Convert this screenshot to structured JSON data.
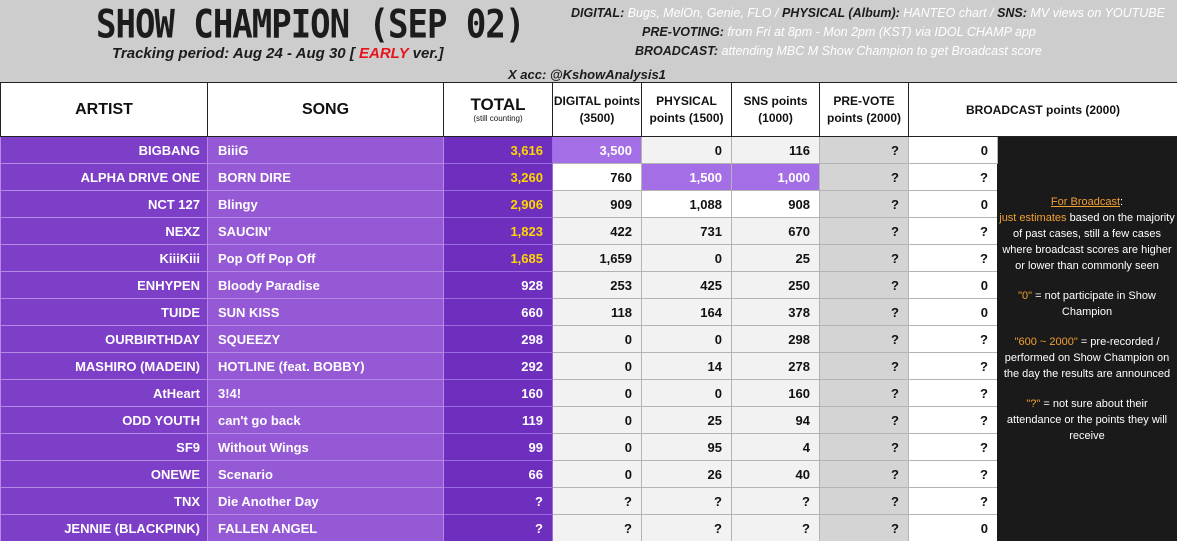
{
  "header": {
    "title": "SHOW CHAMPION (SEP 02)",
    "tracking_prefix": "Tracking period: Aug 24 - Aug 30 [",
    "tracking_early": "EARLY",
    "tracking_suffix": "ver.]",
    "x_account": "X acc: @KshowAnalysis1",
    "digital_label": "DIGITAL:",
    "digital_text": "Bugs, MelOn, Genie, FLO /",
    "physical_label": "PHYSICAL (Album):",
    "physical_text": "HANTEO chart /",
    "sns_label": "SNS:",
    "sns_text": "MV views on YOUTUBE",
    "prevote_label": "PRE-VOTING:",
    "prevote_text": "from Fri at 8pm - Mon 2pm (KST) via IDOL CHAMP app",
    "broadcast_label": "BROADCAST:",
    "broadcast_text": "attending MBC M Show Champion to get Broadcast score"
  },
  "columns": {
    "artist": "ARTIST",
    "song": "SONG",
    "total": "TOTAL",
    "total_note": "(still counting)",
    "digital": "DIGITAL points (3500)",
    "physical": "PHYSICAL points (1500)",
    "sns": "SNS points (1000)",
    "prevote": "PRE-VOTE points (2000)",
    "broadcast": "BROADCAST points (2000)"
  },
  "rows": [
    {
      "artist": "BIGBANG",
      "song": "BiiiG",
      "total": "3,616",
      "digital": "3,500",
      "physical": "0",
      "sns": "116",
      "prevote": "?",
      "broadcast": "0"
    },
    {
      "artist": "ALPHA DRIVE ONE",
      "song": "BORN DIRE",
      "total": "3,260",
      "digital": "760",
      "physical": "1,500",
      "sns": "1,000",
      "prevote": "?",
      "broadcast": "?"
    },
    {
      "artist": "NCT 127",
      "song": "Blingy",
      "total": "2,906",
      "digital": "909",
      "physical": "1,088",
      "sns": "908",
      "prevote": "?",
      "broadcast": "0"
    },
    {
      "artist": "NEXZ",
      "song": "SAUCIN'",
      "total": "1,823",
      "digital": "422",
      "physical": "731",
      "sns": "670",
      "prevote": "?",
      "broadcast": "?"
    },
    {
      "artist": "KiiiKiii",
      "song": "Pop Off Pop Off",
      "total": "1,685",
      "digital": "1,659",
      "physical": "0",
      "sns": "25",
      "prevote": "?",
      "broadcast": "?"
    },
    {
      "artist": "ENHYPEN",
      "song": "Bloody Paradise",
      "total": "928",
      "digital": "253",
      "physical": "425",
      "sns": "250",
      "prevote": "?",
      "broadcast": "0"
    },
    {
      "artist": "TUIDE",
      "song": "SUN KISS",
      "total": "660",
      "digital": "118",
      "physical": "164",
      "sns": "378",
      "prevote": "?",
      "broadcast": "0"
    },
    {
      "artist": "OURBIRTHDAY",
      "song": "SQUEEZY",
      "total": "298",
      "digital": "0",
      "physical": "0",
      "sns": "298",
      "prevote": "?",
      "broadcast": "?"
    },
    {
      "artist": "MASHIRO (MADEIN)",
      "song": "HOTLINE (feat. BOBBY)",
      "total": "292",
      "digital": "0",
      "physical": "14",
      "sns": "278",
      "prevote": "?",
      "broadcast": "?"
    },
    {
      "artist": "AtHeart",
      "song": "3!4!",
      "total": "160",
      "digital": "0",
      "physical": "0",
      "sns": "160",
      "prevote": "?",
      "broadcast": "?"
    },
    {
      "artist": "ODD YOUTH",
      "song": "can't go back",
      "total": "119",
      "digital": "0",
      "physical": "25",
      "sns": "94",
      "prevote": "?",
      "broadcast": "?"
    },
    {
      "artist": "SF9",
      "song": "Without Wings",
      "total": "99",
      "digital": "0",
      "physical": "95",
      "sns": "4",
      "prevote": "?",
      "broadcast": "?"
    },
    {
      "artist": "ONEWE",
      "song": "Scenario",
      "total": "66",
      "digital": "0",
      "physical": "26",
      "sns": "40",
      "prevote": "?",
      "broadcast": "?"
    },
    {
      "artist": "TNX",
      "song": "Die Another Day",
      "total": "?",
      "digital": "?",
      "physical": "?",
      "sns": "?",
      "prevote": "?",
      "broadcast": "?"
    },
    {
      "artist": "JENNIE (BLACKPINK)",
      "song": "FALLEN ANGEL",
      "total": "?",
      "digital": "?",
      "physical": "?",
      "sns": "?",
      "prevote": "?",
      "broadcast": "0"
    }
  ],
  "notes": {
    "broadcast_title": "For Broadcast",
    "broadcast_colon": ":",
    "broadcast_highlight": "just estimates",
    "broadcast_rest": "based on the majority of past cases, still a few cases where broadcast scores are higher or lower than commonly seen",
    "zero_quote": "\"0\"",
    "zero_text": "= not participate in Show Champion",
    "range_quote": "\"600 ~ 2000\"",
    "range_text": "= pre-recorded / performed on Show Champion on the day the results are announced",
    "unknown_quote": "\"?\"",
    "unknown_text": "= not sure about their attendance or the points they will receive"
  },
  "colors": {
    "header_bg": "#cdcdcd",
    "artist_bg": "#7d3ec8",
    "total_gold": "#ffd700",
    "highlight_cell": "#a36ee6",
    "notes_bg": "#1a1a1a",
    "notes_orange": "#f2a033",
    "early_red": "#e8141b"
  }
}
